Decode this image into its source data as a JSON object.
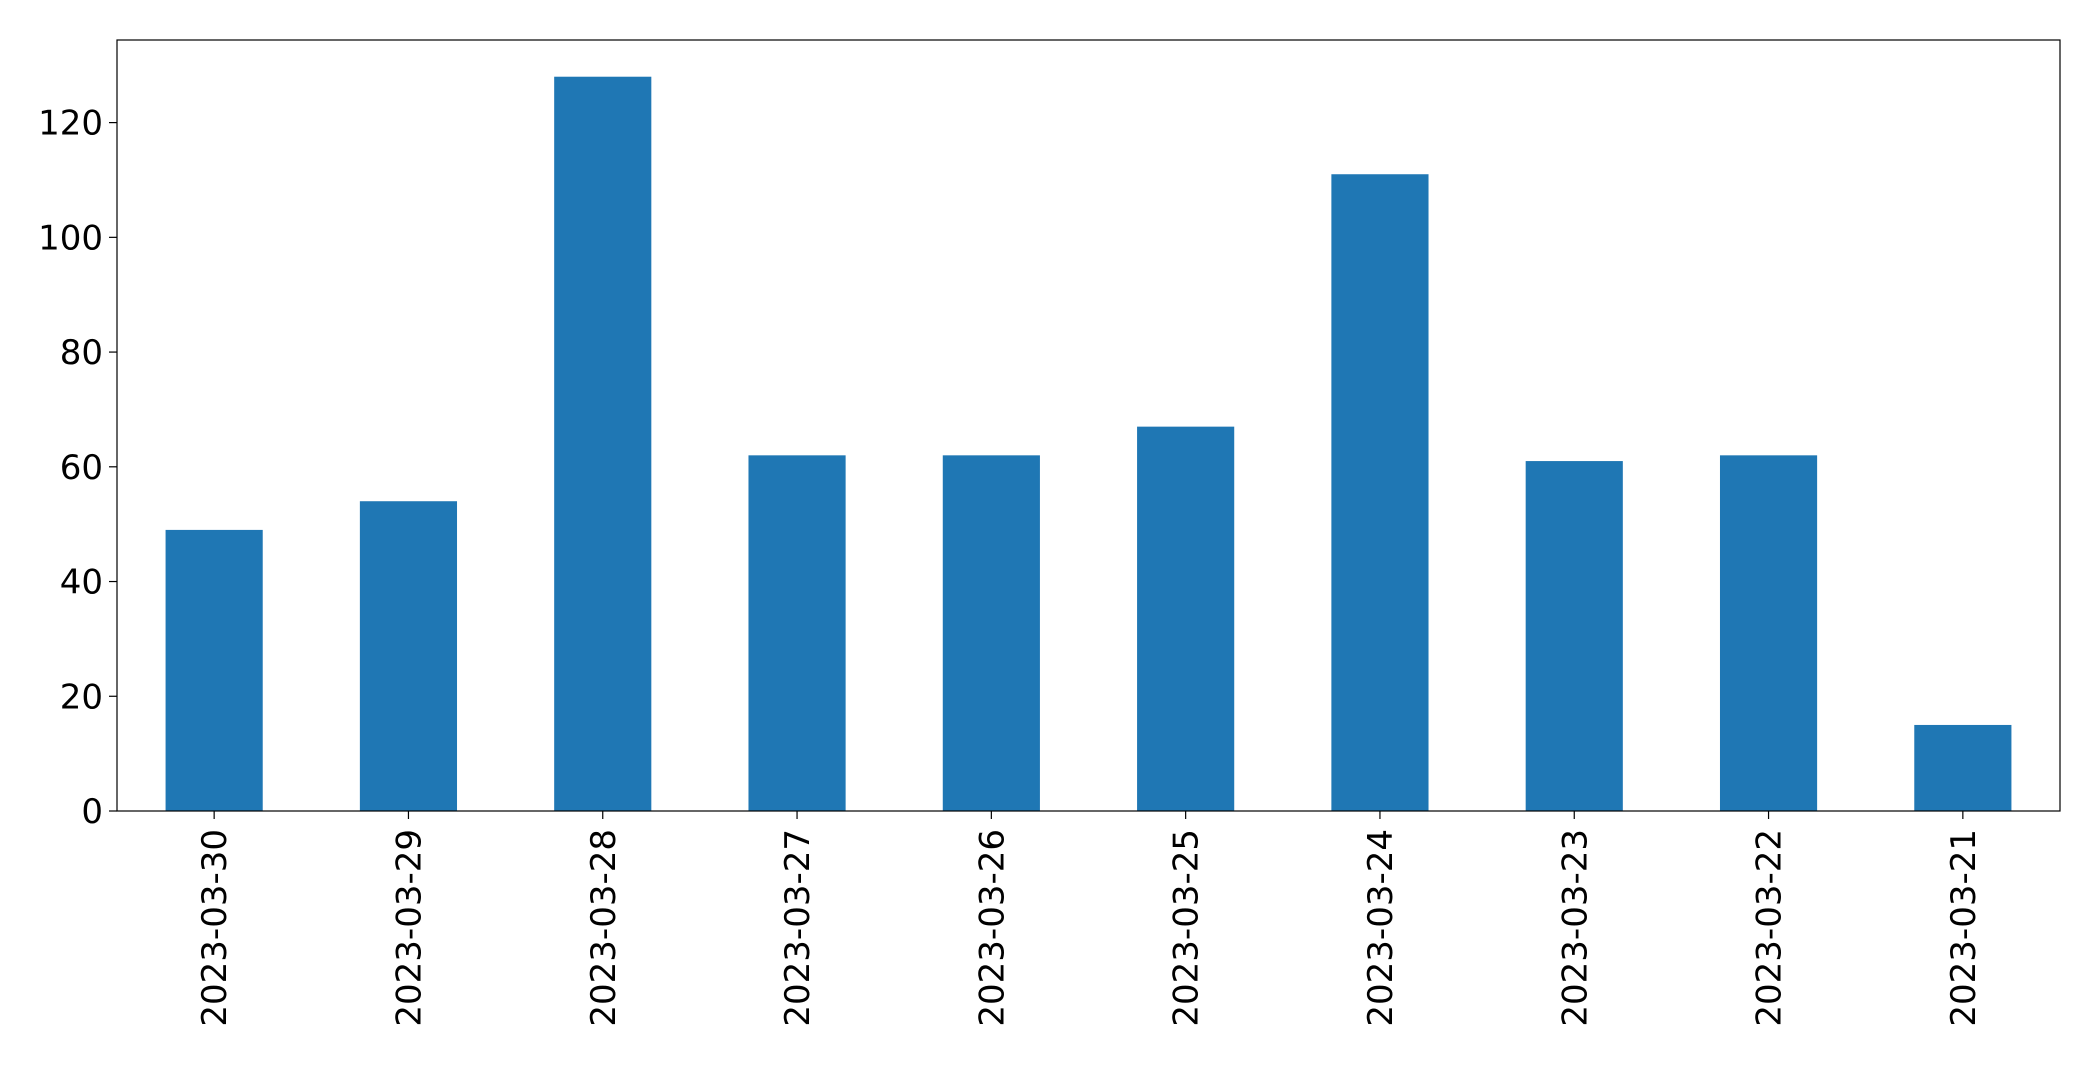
{
  "chart_data": {
    "type": "bar",
    "title": "",
    "xlabel": "",
    "ylabel": "",
    "categories": [
      "2023-03-30",
      "2023-03-29",
      "2023-03-28",
      "2023-03-27",
      "2023-03-26",
      "2023-03-25",
      "2023-03-24",
      "2023-03-23",
      "2023-03-22",
      "2023-03-21"
    ],
    "series": [
      {
        "values": [
          49,
          54,
          128,
          62,
          62,
          67,
          111,
          61,
          62,
          15
        ],
        "color": "#1f77b4"
      }
    ],
    "ylim": [
      0,
      134.4
    ],
    "yticks": [
      "0",
      "20",
      "40",
      "60",
      "80",
      "100",
      "120"
    ],
    "grid": false,
    "legend": "none"
  }
}
